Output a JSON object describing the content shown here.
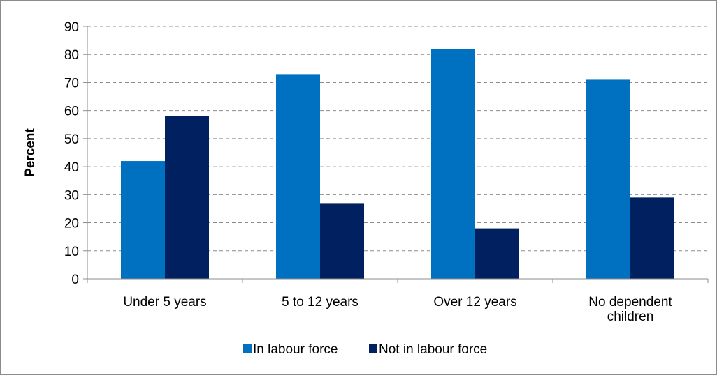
{
  "chart_data": {
    "type": "bar",
    "title": "",
    "xlabel": "",
    "ylabel": "Percent",
    "ylim": [
      0,
      90
    ],
    "yticks": [
      0,
      10,
      20,
      30,
      40,
      50,
      60,
      70,
      80,
      90
    ],
    "grid": true,
    "legend_position": "bottom",
    "categories": [
      [
        "Under 5 years"
      ],
      [
        "5 to 12 years"
      ],
      [
        "Over 12 years"
      ],
      [
        "No dependent",
        "children"
      ]
    ],
    "series": [
      {
        "name": "In labour force",
        "color": "#0070c0",
        "values": [
          42,
          73,
          82,
          71
        ]
      },
      {
        "name": "Not in labour force",
        "color": "#002060",
        "values": [
          58,
          27,
          18,
          29
        ]
      }
    ]
  }
}
